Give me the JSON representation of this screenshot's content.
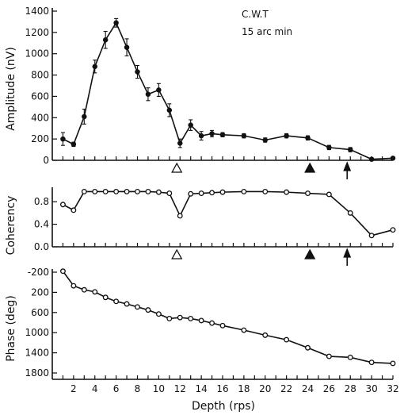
{
  "annotation": {
    "line1": "C.W.T",
    "line2": "15 arc min"
  },
  "xlabel": "Depth (rps)",
  "x_ticks": [
    2,
    4,
    6,
    8,
    10,
    12,
    14,
    16,
    18,
    20,
    22,
    24,
    26,
    28,
    30,
    32
  ],
  "x_range": [
    0,
    32
  ],
  "markers": [
    {
      "x": 11.7,
      "type": "open-triangle",
      "panels": [
        "amplitude",
        "coherency"
      ]
    },
    {
      "x": 24.2,
      "type": "filled-triangle",
      "panels": [
        "amplitude",
        "coherency"
      ]
    },
    {
      "x": 27.7,
      "type": "arrow-up",
      "panels": [
        "amplitude",
        "coherency"
      ]
    }
  ],
  "chart_data": [
    {
      "name": "amplitude",
      "type": "line",
      "ylabel": "Amplitude (nV)",
      "ylim": [
        0,
        1400
      ],
      "y_ticks": [
        0,
        200,
        400,
        600,
        800,
        1000,
        1200,
        1400
      ],
      "x": [
        1,
        2,
        3,
        4,
        5,
        6,
        7,
        8,
        9,
        10,
        11,
        12,
        13,
        14,
        15,
        16,
        18,
        20,
        22,
        24,
        26,
        28,
        30,
        32
      ],
      "y": [
        200,
        150,
        410,
        880,
        1130,
        1290,
        1060,
        830,
        620,
        660,
        470,
        160,
        330,
        230,
        250,
        240,
        230,
        190,
        230,
        210,
        120,
        100,
        10,
        20
      ],
      "err": [
        60,
        20,
        70,
        60,
        80,
        40,
        80,
        60,
        60,
        60,
        60,
        40,
        50,
        40,
        30,
        20,
        20,
        20,
        20,
        20,
        20,
        20,
        10,
        10
      ]
    },
    {
      "name": "coherency",
      "type": "line",
      "ylabel": "Coherency",
      "ylim": [
        0,
        1
      ],
      "y_ticks": [
        0,
        0.4,
        0.8
      ],
      "x": [
        1,
        2,
        3,
        4,
        5,
        6,
        7,
        8,
        9,
        10,
        11,
        12,
        13,
        14,
        15,
        16,
        18,
        20,
        22,
        24,
        26,
        28,
        30,
        32
      ],
      "y": [
        0.75,
        0.65,
        0.98,
        0.98,
        0.98,
        0.98,
        0.98,
        0.98,
        0.98,
        0.97,
        0.95,
        0.55,
        0.94,
        0.95,
        0.96,
        0.97,
        0.98,
        0.98,
        0.97,
        0.95,
        0.93,
        0.6,
        0.2,
        0.3
      ]
    },
    {
      "name": "phase",
      "type": "line",
      "ylabel": "Phase (deg)",
      "ylim": [
        -200,
        1800
      ],
      "y_ticks": [
        -200,
        200,
        600,
        1000,
        1400,
        1800
      ],
      "y_tick_labels": [
        "-200",
        "200",
        "600",
        "1000",
        "1400",
        "1800"
      ],
      "y_inverted": true,
      "x": [
        1,
        2,
        3,
        4,
        5,
        6,
        7,
        8,
        9,
        10,
        11,
        12,
        13,
        14,
        15,
        16,
        18,
        20,
        22,
        24,
        26,
        28,
        30,
        32
      ],
      "y": [
        -220,
        70,
        150,
        190,
        300,
        380,
        430,
        490,
        550,
        630,
        720,
        700,
        720,
        760,
        810,
        860,
        950,
        1050,
        1140,
        1300,
        1470,
        1490,
        1590,
        1610
      ]
    }
  ]
}
